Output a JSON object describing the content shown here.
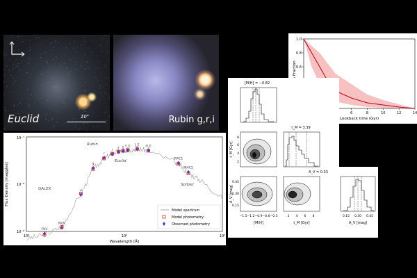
{
  "images": {
    "euclid": {
      "label": "Euclid",
      "scale_label": "10\""
    },
    "rubin": {
      "label": "Rubin g,r,i"
    }
  },
  "sed": {
    "ylabel": "Flux Density [maggies]",
    "xlabel": "Wavelength [Å]",
    "y_ticks": [
      "10⁻⁷",
      "10⁻⁸",
      "10⁻⁹"
    ],
    "x_ticks": [
      "10³",
      "10⁴",
      "10⁵"
    ],
    "survey_labels": [
      "GALEX",
      "Rubin",
      "Euclid",
      "Spitzer"
    ],
    "band_labels": [
      "FUV",
      "NUV",
      "u",
      "g",
      "r",
      "i",
      "z",
      "y",
      "Y_E",
      "J_E",
      "H_E",
      "IRAC1",
      "IRAC2"
    ],
    "legend": [
      "Model spectrum",
      "Model photometry",
      "Observed photometry"
    ],
    "colors": {
      "spectrum": "#9a9a9a",
      "model": "#d62728",
      "observed": "#3b3bd6"
    }
  },
  "chart_data": [
    {
      "type": "scatter",
      "title": "",
      "xlabel": "Wavelength [Å]",
      "ylabel": "Flux Density [maggies]",
      "xscale": "log",
      "yscale": "log",
      "xlim": [
        1000,
        100000
      ],
      "ylim": [
        1e-09,
        1e-07
      ],
      "series": [
        {
          "name": "Observed photometry",
          "x": [
            1530,
            2300,
            3600,
            4800,
            6200,
            7500,
            8700,
            9700,
            10800,
            13500,
            17600,
            35500,
            45000
          ],
          "y": [
            9e-10,
            1.2e-09,
            6e-09,
            2.2e-08,
            3.6e-08,
            4.3e-08,
            4.8e-08,
            5e-08,
            5.2e-08,
            5.5e-08,
            5.2e-08,
            2.8e-08,
            1.8e-08
          ]
        },
        {
          "name": "Model photometry",
          "x": [
            1530,
            2300,
            3600,
            4800,
            6200,
            7500,
            8700,
            9700,
            10800,
            13500,
            17600,
            35500,
            45000
          ],
          "y": [
            8.5e-10,
            1.25e-09,
            6.3e-09,
            2.1e-08,
            3.5e-08,
            4.4e-08,
            4.9e-08,
            5.1e-08,
            5.3e-08,
            5.6e-08,
            5.1e-08,
            2.7e-08,
            1.7e-08
          ]
        }
      ]
    },
    {
      "type": "line",
      "xlabel": "Lookback time (Gyr)",
      "ylabel": "Mass Fraction",
      "xlim": [
        0,
        14
      ],
      "ylim": [
        0,
        1.0
      ],
      "x_ticks": [
        "0",
        "2",
        "4",
        "6",
        "8",
        "10",
        "12",
        "14"
      ],
      "y_ticks": [
        "0.0",
        "0.2",
        "0.4",
        "0.6",
        "0.8",
        "1.0"
      ],
      "x": [
        0,
        1,
        2,
        3,
        4,
        6,
        8,
        10,
        12,
        14
      ],
      "y": [
        1.0,
        0.8,
        0.6,
        0.4,
        0.25,
        0.15,
        0.08,
        0.05,
        0.02,
        0.0
      ],
      "band_low": [
        1.0,
        0.6,
        0.35,
        0.2,
        0.1,
        0.05,
        0.02,
        0.01,
        0.0,
        0.0
      ],
      "band_high": [
        1.0,
        0.9,
        0.8,
        0.65,
        0.5,
        0.35,
        0.2,
        0.12,
        0.06,
        0.0
      ],
      "line_color": "#b00020",
      "band_color": "#f4a6a6"
    }
  ],
  "corner": {
    "titles": [
      "[M/H] = −0.82",
      "t_M = 3.39",
      "A_V = 0.33"
    ],
    "ylabels": [
      "t_M [Gyr]",
      "A_V [mag]"
    ],
    "xlabels": [
      "[M/H]",
      "t_M [Gyr]",
      "A_V [mag]"
    ],
    "mh_ticks": [
      "−1.5",
      "−1.2",
      "−0.9",
      "−0.6",
      "−0.3"
    ],
    "tm_ticks": [
      "2",
      "4",
      "6",
      "8"
    ],
    "av_ticks": [
      "0.15",
      "0.30",
      "0.45"
    ],
    "tm_yticks": [
      "8",
      "6",
      "4",
      "2"
    ],
    "av_yticks": [
      "0.45",
      "0.30",
      "0.15"
    ]
  }
}
